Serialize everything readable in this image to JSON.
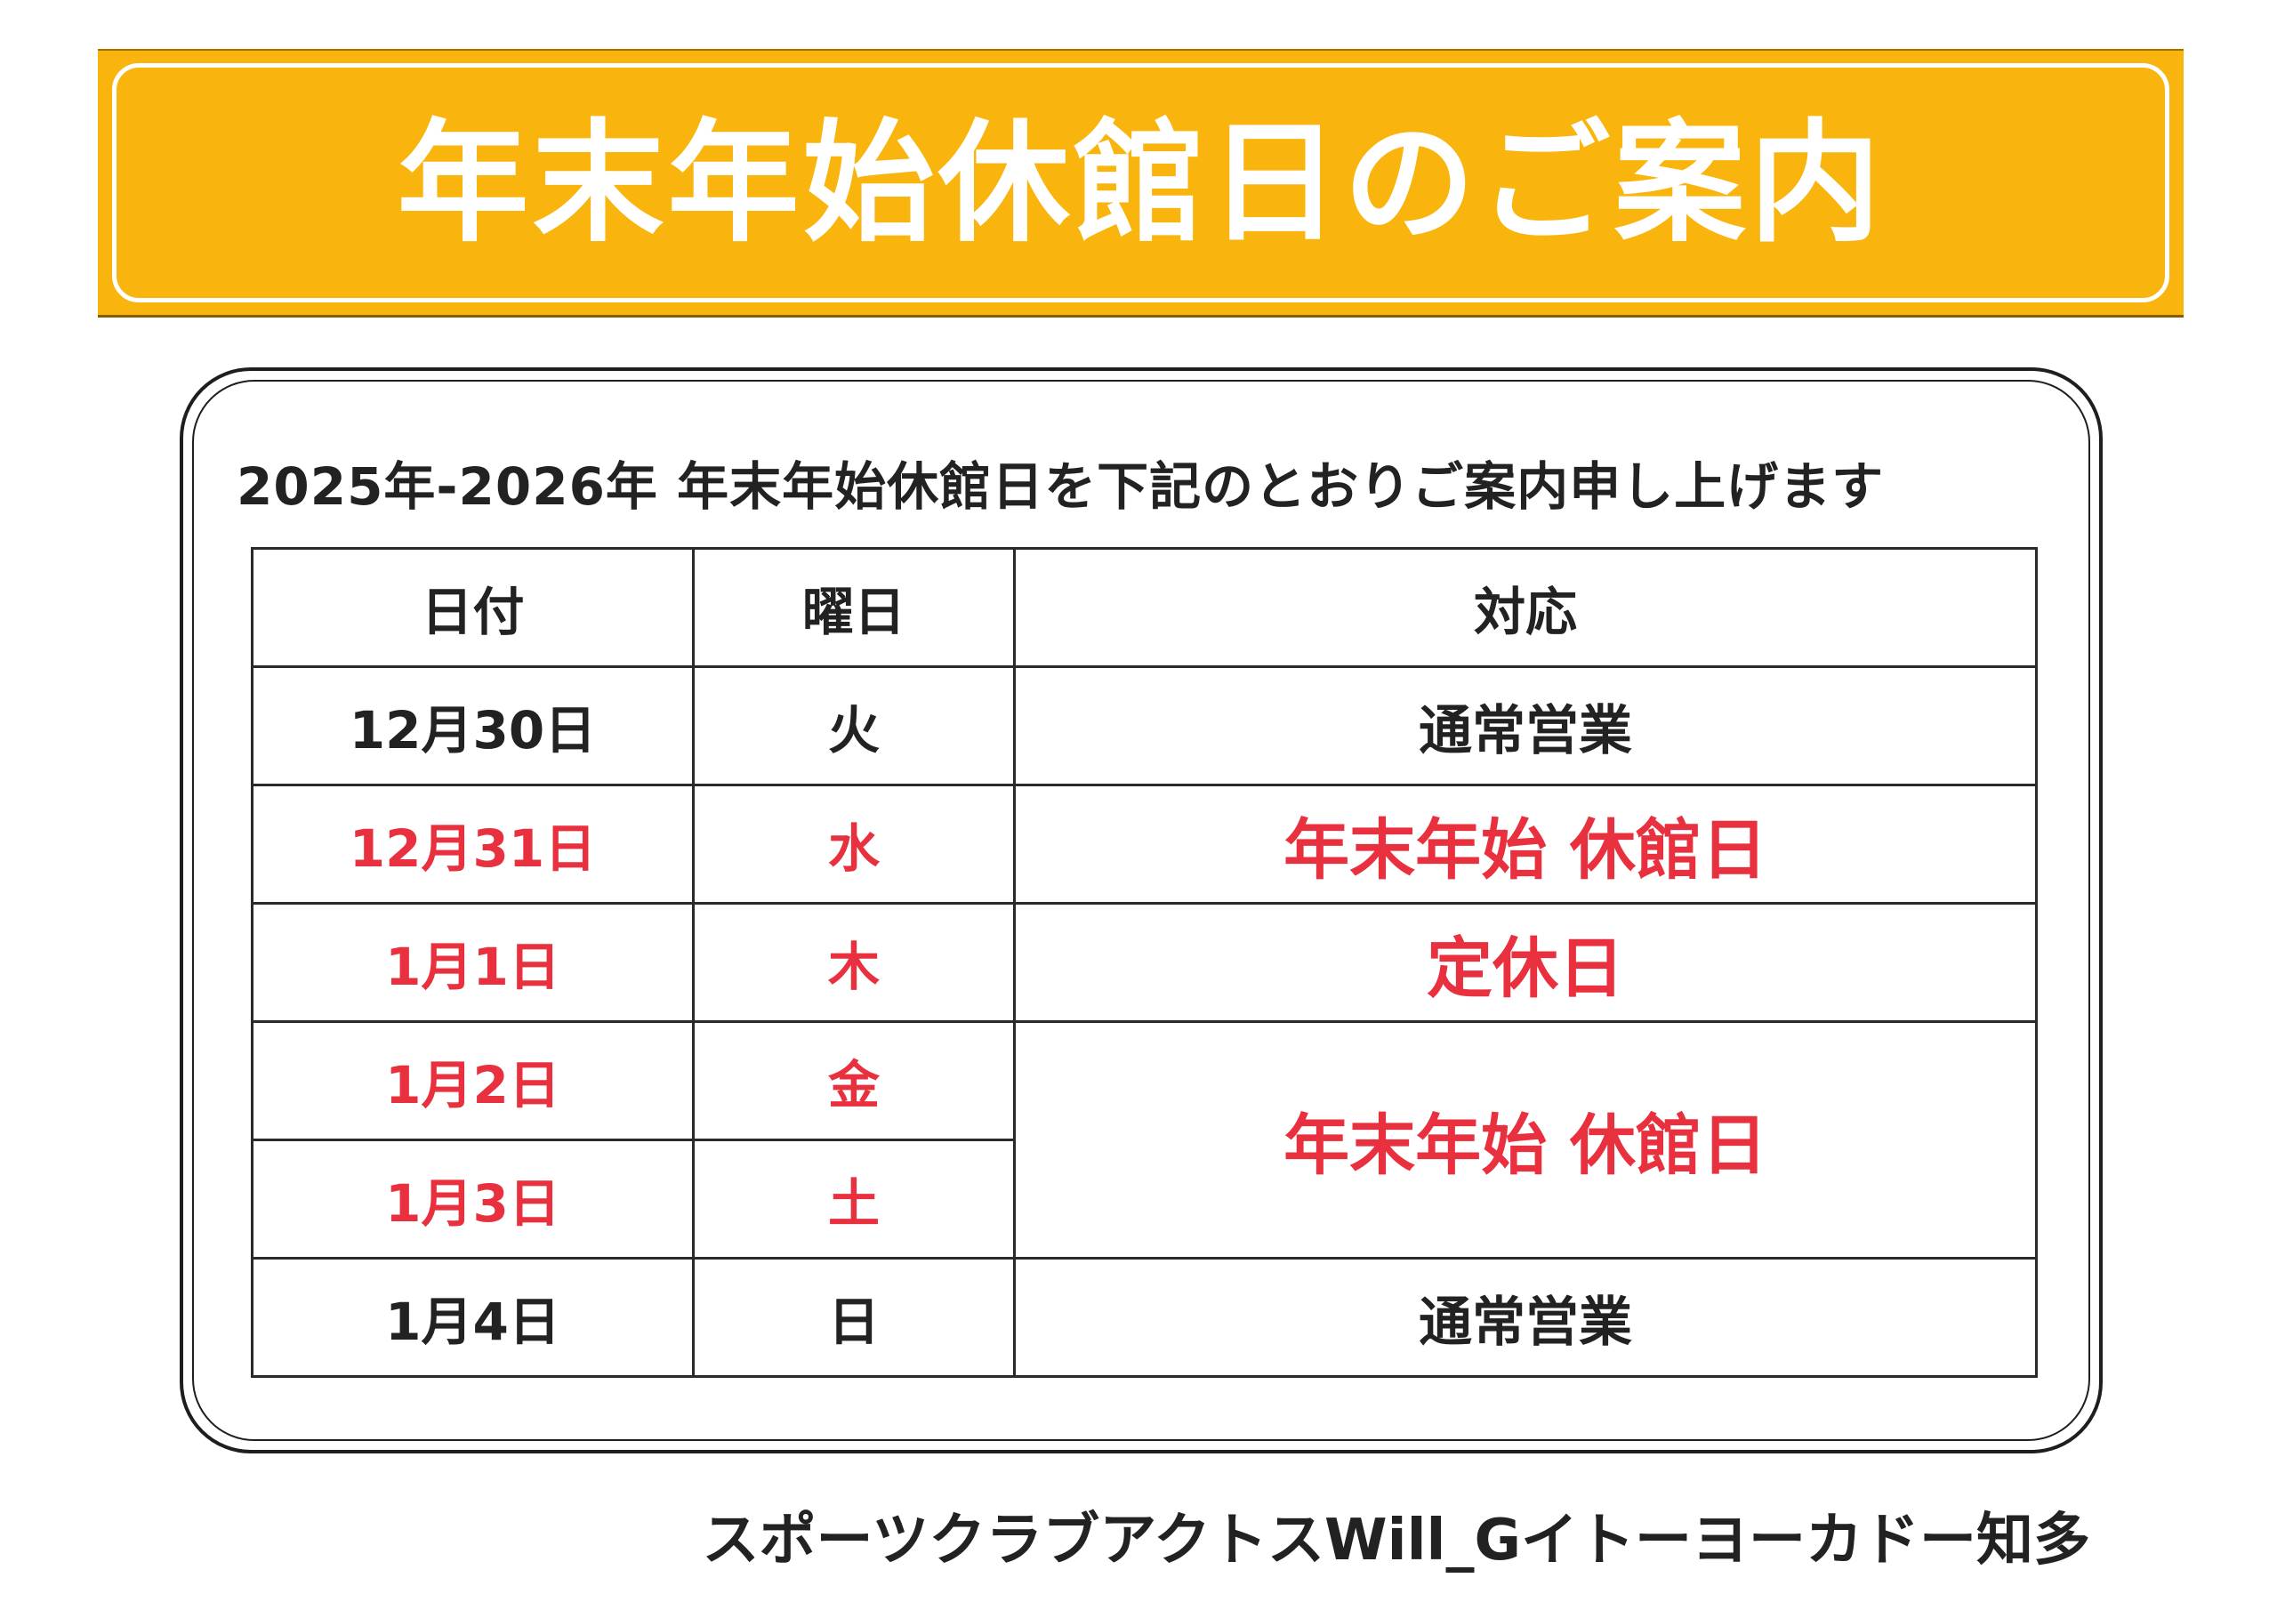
{
  "banner": {
    "title": "年末年始休館日のご案内"
  },
  "notice": {
    "text": "2025年-2026年 年末年始休館日を下記のとおりご案内申し上げます"
  },
  "table": {
    "headers": [
      "日付",
      "曜日",
      "対応"
    ],
    "rows": [
      {
        "date": "12月30日",
        "weekday": "火",
        "handling": "通常営業"
      },
      {
        "date": "12月31日",
        "weekday": "水",
        "handling": "年末年始 休館日"
      },
      {
        "date": "1月1日",
        "weekday": "木",
        "handling": "定休日"
      },
      {
        "date": "1月2日",
        "weekday": "金",
        "handling": "年末年始 休館日"
      },
      {
        "date": "1月3日",
        "weekday": "土"
      },
      {
        "date": "1月4日",
        "weekday": "日",
        "handling": "通常営業"
      }
    ]
  },
  "footer": {
    "text": "スポーツクラブアクトスWill_Gイトーヨーカドー知多"
  },
  "colors": {
    "banner": "#f9b40d",
    "closed_text": "#e8303e",
    "normal_text": "#222222"
  }
}
